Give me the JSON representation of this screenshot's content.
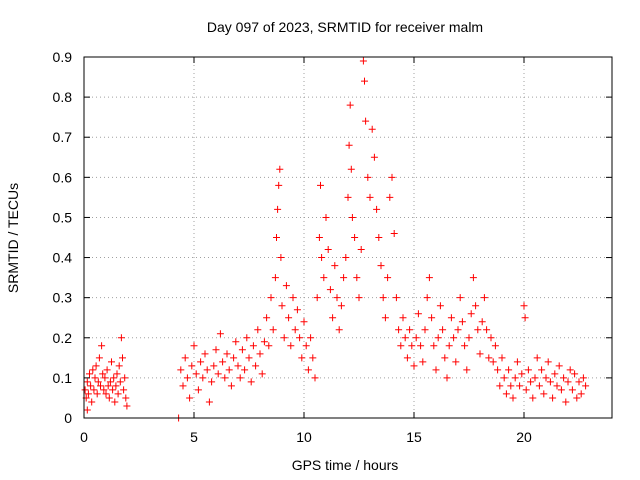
{
  "chart_data": {
    "type": "scatter",
    "title": "Day 097 of 2023, SRMTID for receiver malm",
    "xlabel": "GPS time / hours",
    "ylabel": "SRMTID / TECUs",
    "xlim": [
      0,
      24
    ],
    "ylim": [
      0,
      0.9
    ],
    "xticks": [
      0,
      5,
      10,
      15,
      20
    ],
    "yticks": [
      0,
      0.1,
      0.2,
      0.3,
      0.4,
      0.5,
      0.6,
      0.7,
      0.8,
      0.9
    ],
    "ytick_labels": [
      "0",
      "0.1",
      "0.2",
      "0.3",
      "0.4",
      "0.5",
      "0.6",
      "0.7",
      "0.8",
      "0.9"
    ],
    "grid": true,
    "marker": "+",
    "color": "#ff0000",
    "series": [
      {
        "name": "malm",
        "points": [
          [
            0.05,
            0.07
          ],
          [
            0.1,
            0.05
          ],
          [
            0.15,
            0.09
          ],
          [
            0.2,
            0.06
          ],
          [
            0.25,
            0.11
          ],
          [
            0.3,
            0.08
          ],
          [
            0.35,
            0.04
          ],
          [
            0.4,
            0.12
          ],
          [
            0.45,
            0.07
          ],
          [
            0.5,
            0.1
          ],
          [
            0.55,
            0.13
          ],
          [
            0.6,
            0.06
          ],
          [
            0.65,
            0.09
          ],
          [
            0.7,
            0.15
          ],
          [
            0.75,
            0.08
          ],
          [
            0.8,
            0.18
          ],
          [
            0.85,
            0.11
          ],
          [
            0.9,
            0.07
          ],
          [
            0.95,
            0.1
          ],
          [
            1.0,
            0.06
          ],
          [
            1.05,
            0.12
          ],
          [
            1.1,
            0.08
          ],
          [
            1.15,
            0.05
          ],
          [
            1.2,
            0.09
          ],
          [
            1.25,
            0.14
          ],
          [
            1.3,
            0.07
          ],
          [
            1.35,
            0.1
          ],
          [
            1.4,
            0.04
          ],
          [
            1.45,
            0.08
          ],
          [
            1.5,
            0.11
          ],
          [
            1.55,
            0.06
          ],
          [
            1.6,
            0.13
          ],
          [
            1.65,
            0.09
          ],
          [
            1.7,
            0.2
          ],
          [
            1.75,
            0.15
          ],
          [
            1.8,
            0.07
          ],
          [
            1.85,
            0.1
          ],
          [
            1.9,
            0.05
          ],
          [
            1.95,
            0.03
          ],
          [
            0.15,
            0.02
          ],
          [
            4.3,
            0.0
          ],
          [
            4.4,
            0.12
          ],
          [
            4.5,
            0.08
          ],
          [
            4.6,
            0.15
          ],
          [
            4.7,
            0.1
          ],
          [
            4.8,
            0.05
          ],
          [
            4.9,
            0.13
          ],
          [
            5.0,
            0.18
          ],
          [
            5.1,
            0.11
          ],
          [
            5.2,
            0.07
          ],
          [
            5.3,
            0.14
          ],
          [
            5.4,
            0.1
          ],
          [
            5.5,
            0.16
          ],
          [
            5.6,
            0.12
          ],
          [
            5.7,
            0.04
          ],
          [
            5.8,
            0.09
          ],
          [
            5.9,
            0.13
          ],
          [
            6.0,
            0.17
          ],
          [
            6.1,
            0.11
          ],
          [
            6.2,
            0.21
          ],
          [
            6.3,
            0.14
          ],
          [
            6.4,
            0.1
          ],
          [
            6.5,
            0.16
          ],
          [
            6.6,
            0.12
          ],
          [
            6.7,
            0.08
          ],
          [
            6.8,
            0.15
          ],
          [
            6.9,
            0.19
          ],
          [
            7.0,
            0.13
          ],
          [
            7.1,
            0.1
          ],
          [
            7.2,
            0.17
          ],
          [
            7.3,
            0.12
          ],
          [
            7.4,
            0.2
          ],
          [
            7.5,
            0.15
          ],
          [
            7.6,
            0.09
          ],
          [
            7.7,
            0.18
          ],
          [
            7.8,
            0.13
          ],
          [
            7.9,
            0.22
          ],
          [
            8.0,
            0.16
          ],
          [
            8.1,
            0.11
          ],
          [
            8.2,
            0.19
          ],
          [
            8.3,
            0.25
          ],
          [
            8.4,
            0.18
          ],
          [
            8.5,
            0.3
          ],
          [
            8.6,
            0.22
          ],
          [
            8.7,
            0.35
          ],
          [
            8.75,
            0.45
          ],
          [
            8.8,
            0.52
          ],
          [
            8.85,
            0.58
          ],
          [
            8.9,
            0.62
          ],
          [
            8.95,
            0.4
          ],
          [
            9.0,
            0.28
          ],
          [
            9.1,
            0.2
          ],
          [
            9.2,
            0.33
          ],
          [
            9.3,
            0.25
          ],
          [
            9.4,
            0.18
          ],
          [
            9.5,
            0.3
          ],
          [
            9.6,
            0.22
          ],
          [
            9.7,
            0.27
          ],
          [
            9.8,
            0.2
          ],
          [
            9.9,
            0.15
          ],
          [
            10.0,
            0.24
          ],
          [
            10.1,
            0.18
          ],
          [
            10.2,
            0.12
          ],
          [
            10.3,
            0.2
          ],
          [
            10.4,
            0.15
          ],
          [
            10.5,
            0.1
          ],
          [
            10.6,
            0.3
          ],
          [
            10.7,
            0.45
          ],
          [
            10.75,
            0.58
          ],
          [
            10.8,
            0.4
          ],
          [
            10.9,
            0.35
          ],
          [
            11.0,
            0.5
          ],
          [
            11.1,
            0.42
          ],
          [
            11.2,
            0.32
          ],
          [
            11.3,
            0.25
          ],
          [
            11.4,
            0.38
          ],
          [
            11.5,
            0.3
          ],
          [
            11.6,
            0.22
          ],
          [
            11.7,
            0.28
          ],
          [
            11.8,
            0.35
          ],
          [
            11.9,
            0.4
          ],
          [
            12.0,
            0.55
          ],
          [
            12.05,
            0.68
          ],
          [
            12.1,
            0.78
          ],
          [
            12.15,
            0.62
          ],
          [
            12.2,
            0.5
          ],
          [
            12.3,
            0.45
          ],
          [
            12.4,
            0.35
          ],
          [
            12.5,
            0.3
          ],
          [
            12.6,
            0.42
          ],
          [
            12.7,
            0.89
          ],
          [
            12.75,
            0.84
          ],
          [
            12.8,
            0.74
          ],
          [
            12.9,
            0.6
          ],
          [
            13.0,
            0.55
          ],
          [
            13.1,
            0.72
          ],
          [
            13.2,
            0.65
          ],
          [
            13.3,
            0.52
          ],
          [
            13.4,
            0.45
          ],
          [
            13.5,
            0.38
          ],
          [
            13.6,
            0.3
          ],
          [
            13.7,
            0.25
          ],
          [
            13.8,
            0.35
          ],
          [
            13.9,
            0.55
          ],
          [
            14.0,
            0.6
          ],
          [
            14.1,
            0.46
          ],
          [
            14.2,
            0.3
          ],
          [
            14.3,
            0.22
          ],
          [
            14.4,
            0.18
          ],
          [
            14.5,
            0.25
          ],
          [
            14.6,
            0.2
          ],
          [
            14.7,
            0.15
          ],
          [
            14.8,
            0.22
          ],
          [
            14.9,
            0.18
          ],
          [
            15.0,
            0.13
          ],
          [
            15.1,
            0.2
          ],
          [
            15.2,
            0.26
          ],
          [
            15.3,
            0.18
          ],
          [
            15.4,
            0.14
          ],
          [
            15.5,
            0.22
          ],
          [
            15.6,
            0.3
          ],
          [
            15.7,
            0.35
          ],
          [
            15.8,
            0.25
          ],
          [
            15.9,
            0.18
          ],
          [
            16.0,
            0.12
          ],
          [
            16.1,
            0.2
          ],
          [
            16.2,
            0.28
          ],
          [
            16.3,
            0.22
          ],
          [
            16.4,
            0.15
          ],
          [
            16.5,
            0.1
          ],
          [
            16.6,
            0.18
          ],
          [
            16.7,
            0.25
          ],
          [
            16.8,
            0.2
          ],
          [
            16.9,
            0.14
          ],
          [
            17.0,
            0.22
          ],
          [
            17.1,
            0.3
          ],
          [
            17.2,
            0.24
          ],
          [
            17.3,
            0.18
          ],
          [
            17.4,
            0.12
          ],
          [
            17.5,
            0.2
          ],
          [
            17.6,
            0.26
          ],
          [
            17.7,
            0.35
          ],
          [
            17.8,
            0.28
          ],
          [
            17.9,
            0.22
          ],
          [
            18.0,
            0.16
          ],
          [
            18.1,
            0.24
          ],
          [
            18.2,
            0.3
          ],
          [
            18.3,
            0.22
          ],
          [
            18.4,
            0.15
          ],
          [
            18.5,
            0.2
          ],
          [
            18.6,
            0.14
          ],
          [
            18.7,
            0.18
          ],
          [
            18.8,
            0.12
          ],
          [
            18.9,
            0.08
          ],
          [
            19.0,
            0.15
          ],
          [
            19.1,
            0.1
          ],
          [
            19.2,
            0.06
          ],
          [
            19.3,
            0.12
          ],
          [
            19.4,
            0.08
          ],
          [
            19.5,
            0.05
          ],
          [
            19.6,
            0.1
          ],
          [
            19.7,
            0.14
          ],
          [
            19.8,
            0.08
          ],
          [
            19.9,
            0.11
          ],
          [
            20.0,
            0.28
          ],
          [
            20.05,
            0.25
          ],
          [
            20.1,
            0.07
          ],
          [
            20.2,
            0.12
          ],
          [
            20.3,
            0.09
          ],
          [
            20.4,
            0.05
          ],
          [
            20.5,
            0.1
          ],
          [
            20.6,
            0.15
          ],
          [
            20.7,
            0.08
          ],
          [
            20.8,
            0.12
          ],
          [
            20.9,
            0.06
          ],
          [
            21.0,
            0.1
          ],
          [
            21.1,
            0.14
          ],
          [
            21.2,
            0.09
          ],
          [
            21.3,
            0.05
          ],
          [
            21.4,
            0.11
          ],
          [
            21.5,
            0.08
          ],
          [
            21.6,
            0.13
          ],
          [
            21.7,
            0.07
          ],
          [
            21.8,
            0.1
          ],
          [
            21.9,
            0.04
          ],
          [
            22.0,
            0.09
          ],
          [
            22.1,
            0.12
          ],
          [
            22.2,
            0.07
          ],
          [
            22.3,
            0.11
          ],
          [
            22.4,
            0.05
          ],
          [
            22.5,
            0.09
          ],
          [
            22.6,
            0.06
          ],
          [
            22.7,
            0.1
          ],
          [
            22.8,
            0.08
          ]
        ]
      }
    ]
  }
}
